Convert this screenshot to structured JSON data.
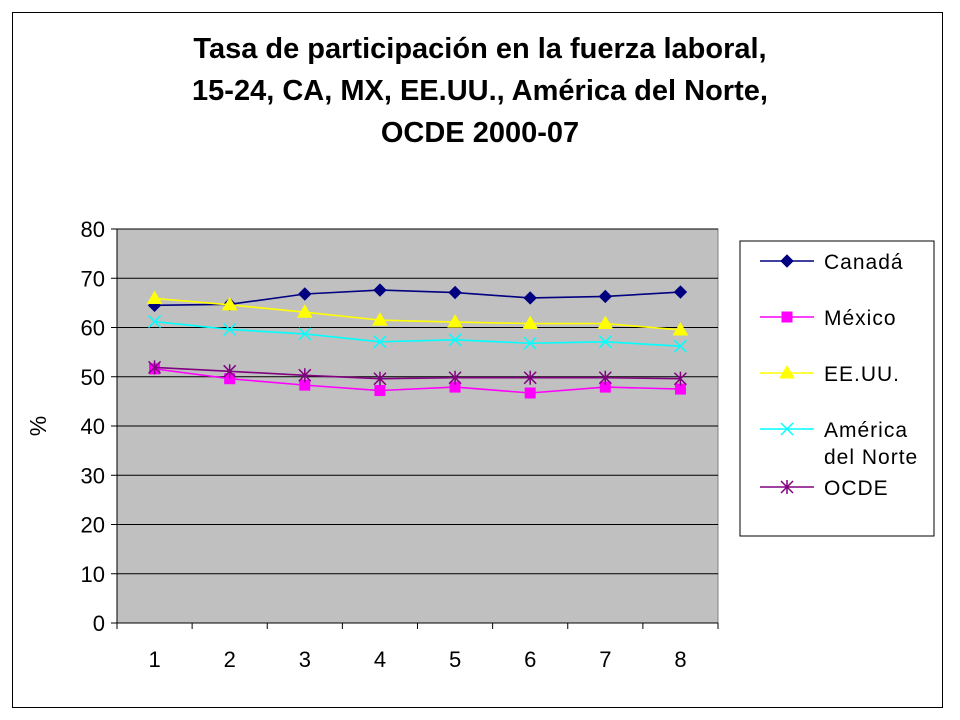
{
  "chart_data": {
    "type": "line",
    "title_lines": [
      "Tasa de participación en la fuerza laboral,",
      "15-24, CA, MX, EE.UU., América del Norte,",
      "OCDE 2000-07"
    ],
    "xlabel": "",
    "ylabel": "%",
    "categories": [
      "1",
      "2",
      "3",
      "4",
      "5",
      "6",
      "7",
      "8"
    ],
    "ylim": [
      0,
      80
    ],
    "yticks": [
      0,
      10,
      20,
      30,
      40,
      50,
      60,
      70,
      80
    ],
    "grid": true,
    "legend_position": "right",
    "plot_background": "#c0c0c0",
    "series": [
      {
        "name": "Canadá",
        "color": "#000080",
        "marker": "diamond",
        "values": [
          64.5,
          64.7,
          66.8,
          67.6,
          67.1,
          66.0,
          66.3,
          67.2
        ]
      },
      {
        "name": "México",
        "color": "#ff00ff",
        "marker": "square",
        "values": [
          51.6,
          49.6,
          48.3,
          47.2,
          47.9,
          46.7,
          47.9,
          47.5
        ]
      },
      {
        "name": "EE.UU.",
        "color": "#ffff00",
        "marker": "triangle",
        "values": [
          65.9,
          64.6,
          63.1,
          61.5,
          61.1,
          60.8,
          60.8,
          59.5
        ]
      },
      {
        "name": "América del Norte",
        "legend_lines": [
          "América",
          "del Norte"
        ],
        "color": "#00ffff",
        "marker": "x",
        "values": [
          61.2,
          59.6,
          58.7,
          57.1,
          57.5,
          56.8,
          57.1,
          56.2
        ]
      },
      {
        "name": "OCDE",
        "color": "#800080",
        "marker": "asterisk",
        "values": [
          51.9,
          51.1,
          50.3,
          49.6,
          49.8,
          49.8,
          49.8,
          49.6
        ]
      }
    ]
  }
}
